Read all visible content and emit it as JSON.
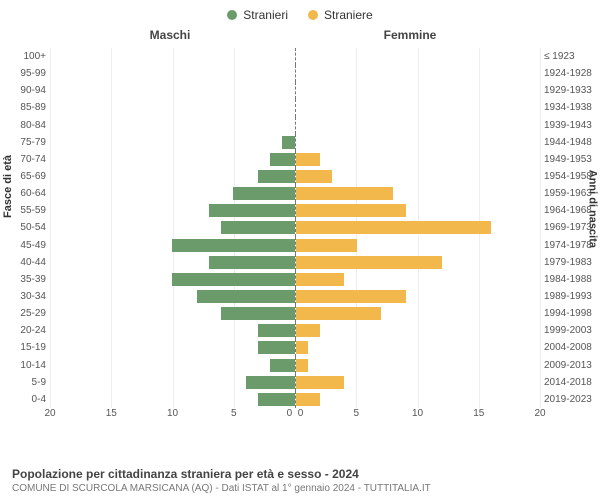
{
  "chart": {
    "type": "population-pyramid",
    "legend": {
      "male": {
        "label": "Stranieri",
        "color": "#6b9b6b"
      },
      "female": {
        "label": "Straniere",
        "color": "#f2b84b"
      }
    },
    "headers": {
      "male": "Maschi",
      "female": "Femmine"
    },
    "y_left_label": "Fasce di età",
    "y_right_label": "Anni di nascita",
    "x_ticks": [
      0,
      5,
      10,
      15,
      20
    ],
    "x_max": 20,
    "age_bands": [
      "100+",
      "95-99",
      "90-94",
      "85-89",
      "80-84",
      "75-79",
      "70-74",
      "65-69",
      "60-64",
      "55-59",
      "50-54",
      "45-49",
      "40-44",
      "35-39",
      "30-34",
      "25-29",
      "20-24",
      "15-19",
      "10-14",
      "5-9",
      "0-4"
    ],
    "birth_years": [
      "≤ 1923",
      "1924-1928",
      "1929-1933",
      "1934-1938",
      "1939-1943",
      "1944-1948",
      "1949-1953",
      "1954-1958",
      "1959-1963",
      "1964-1968",
      "1969-1973",
      "1974-1978",
      "1979-1983",
      "1984-1988",
      "1989-1993",
      "1994-1998",
      "1999-2003",
      "2004-2008",
      "2009-2013",
      "2014-2018",
      "2019-2023"
    ],
    "male_values": [
      0,
      0,
      0,
      0,
      0,
      1,
      2,
      3,
      5,
      7,
      6,
      10,
      7,
      10,
      8,
      6,
      3,
      3,
      2,
      4,
      3
    ],
    "female_values": [
      0,
      0,
      0,
      0,
      0,
      0,
      2,
      3,
      8,
      9,
      16,
      5,
      12,
      4,
      9,
      7,
      2,
      1,
      1,
      4,
      2
    ],
    "male_bar_color": "#6b9b6b",
    "female_bar_color": "#f2b84b",
    "grid_color": "#eeeeee",
    "axis_font_size": 10,
    "label_font_size": 11
  },
  "caption": {
    "title": "Popolazione per cittadinanza straniera per età e sesso - 2024",
    "subtitle": "COMUNE DI SCURCOLA MARSICANA (AQ) - Dati ISTAT al 1° gennaio 2024 - TUTTITALIA.IT"
  }
}
